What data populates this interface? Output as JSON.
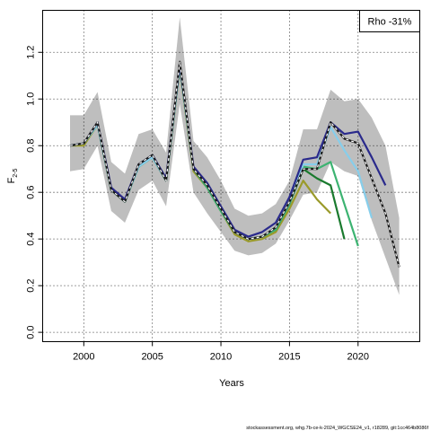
{
  "chart_data": {
    "type": "line",
    "xlabel": "Years",
    "ylabel": "F",
    "ylabel_sub": "2-5",
    "xlim": [
      1997,
      2024.5
    ],
    "ylim": [
      -0.04,
      1.38
    ],
    "x_ticks": [
      2000,
      2005,
      2010,
      2015,
      2020
    ],
    "y_ticks": [
      0.0,
      0.2,
      0.4,
      0.6,
      0.8,
      1.0,
      1.2
    ],
    "y_tick_labels": [
      "0.0",
      "0.2",
      "0.4",
      "0.6",
      "0.8",
      "1.0",
      "1.2"
    ],
    "grid": true,
    "legend": {
      "text": "Rho -31%",
      "placement": "top-right"
    },
    "footer": "stockassessment.org, whg.7b-ce-k-2024_WGCSE24_v1, r18289, git:1cc464b8086f",
    "colors": {
      "band": "#bebebe",
      "terminal": "#1a1a1a",
      "peel1": "#2a2a8c",
      "peel2": "#87ceeb",
      "peel3": "#3cb371",
      "peel4": "#1a7a2e",
      "peel5": "#9a9a2a"
    },
    "confidence_band": {
      "x": [
        1999,
        2000,
        2001,
        2002,
        2003,
        2004,
        2005,
        2006,
        2007,
        2008,
        2009,
        2010,
        2011,
        2012,
        2013,
        2014,
        2015,
        2016,
        2017,
        2018,
        2019,
        2020,
        2021,
        2022,
        2023
      ],
      "upper": [
        0.93,
        0.93,
        1.03,
        0.73,
        0.68,
        0.85,
        0.87,
        0.77,
        1.35,
        0.82,
        0.75,
        0.65,
        0.53,
        0.5,
        0.51,
        0.55,
        0.65,
        0.87,
        0.87,
        1.04,
        0.99,
        1.0,
        0.92,
        0.8,
        0.49
      ],
      "lower": [
        0.69,
        0.7,
        0.8,
        0.52,
        0.47,
        0.61,
        0.65,
        0.54,
        0.98,
        0.6,
        0.51,
        0.43,
        0.35,
        0.33,
        0.34,
        0.38,
        0.48,
        0.59,
        0.6,
        0.73,
        0.69,
        0.67,
        0.48,
        0.32,
        0.16
      ]
    },
    "series": [
      {
        "color_key": "terminal",
        "dashed": true,
        "x": [
          1999,
          2000,
          2001,
          2002,
          2003,
          2004,
          2005,
          2006,
          2007,
          2008,
          2009,
          2010,
          2011,
          2012,
          2013,
          2014,
          2015,
          2016,
          2017,
          2018,
          2019,
          2020,
          2021,
          2022,
          2023
        ],
        "values": [
          0.8,
          0.81,
          0.9,
          0.61,
          0.56,
          0.72,
          0.76,
          0.65,
          1.16,
          0.7,
          0.63,
          0.53,
          0.43,
          0.4,
          0.41,
          0.45,
          0.56,
          0.7,
          0.7,
          0.9,
          0.83,
          0.81,
          0.66,
          0.51,
          0.28
        ]
      },
      {
        "color_key": "peel1",
        "dashed": false,
        "x": [
          1999,
          2000,
          2001,
          2002,
          2003,
          2004,
          2005,
          2006,
          2007,
          2008,
          2009,
          2010,
          2011,
          2012,
          2013,
          2014,
          2015,
          2016,
          2017,
          2018,
          2019,
          2020,
          2021,
          2022
        ],
        "values": [
          0.8,
          0.81,
          0.9,
          0.62,
          0.57,
          0.72,
          0.76,
          0.66,
          1.15,
          0.71,
          0.64,
          0.54,
          0.44,
          0.41,
          0.43,
          0.47,
          0.58,
          0.74,
          0.75,
          0.9,
          0.85,
          0.86,
          0.75,
          0.63
        ]
      },
      {
        "color_key": "peel2",
        "dashed": false,
        "x": [
          1999,
          2000,
          2001,
          2002,
          2003,
          2004,
          2005,
          2006,
          2007,
          2008,
          2009,
          2010,
          2011,
          2012,
          2013,
          2014,
          2015,
          2016,
          2017,
          2018,
          2019,
          2020,
          2021
        ],
        "values": [
          0.8,
          0.81,
          0.89,
          0.61,
          0.56,
          0.71,
          0.75,
          0.65,
          1.14,
          0.7,
          0.63,
          0.53,
          0.43,
          0.4,
          0.41,
          0.45,
          0.56,
          0.72,
          0.72,
          0.88,
          0.78,
          0.69,
          0.49
        ]
      },
      {
        "color_key": "peel3",
        "dashed": false,
        "x": [
          1999,
          2000,
          2001,
          2002,
          2003,
          2004,
          2005,
          2006,
          2007,
          2008,
          2009,
          2010,
          2011,
          2012,
          2013,
          2014,
          2015,
          2016,
          2017,
          2018,
          2019,
          2020
        ],
        "values": [
          0.8,
          0.81,
          0.89,
          0.61,
          0.56,
          0.71,
          0.75,
          0.65,
          1.14,
          0.7,
          0.62,
          0.52,
          0.43,
          0.4,
          0.41,
          0.44,
          0.55,
          0.71,
          0.7,
          0.73,
          0.55,
          0.37
        ]
      },
      {
        "color_key": "peel4",
        "dashed": false,
        "x": [
          1999,
          2000,
          2001,
          2002,
          2003,
          2004,
          2005,
          2006,
          2007,
          2008,
          2009,
          2010,
          2011,
          2012,
          2013,
          2014,
          2015,
          2016,
          2017,
          2018,
          2019
        ],
        "values": [
          0.8,
          0.81,
          0.89,
          0.61,
          0.56,
          0.71,
          0.75,
          0.65,
          1.14,
          0.7,
          0.62,
          0.52,
          0.43,
          0.4,
          0.41,
          0.44,
          0.55,
          0.7,
          0.66,
          0.63,
          0.4
        ]
      },
      {
        "color_key": "peel5",
        "dashed": false,
        "x": [
          1999,
          2000,
          2001,
          2002,
          2003,
          2004,
          2005,
          2006,
          2007,
          2008,
          2009,
          2010,
          2011,
          2012,
          2013,
          2014,
          2015,
          2016,
          2017,
          2018
        ],
        "values": [
          0.8,
          0.8,
          0.89,
          0.61,
          0.56,
          0.71,
          0.75,
          0.65,
          1.13,
          0.69,
          0.62,
          0.52,
          0.42,
          0.39,
          0.4,
          0.43,
          0.53,
          0.65,
          0.57,
          0.51
        ]
      }
    ]
  }
}
